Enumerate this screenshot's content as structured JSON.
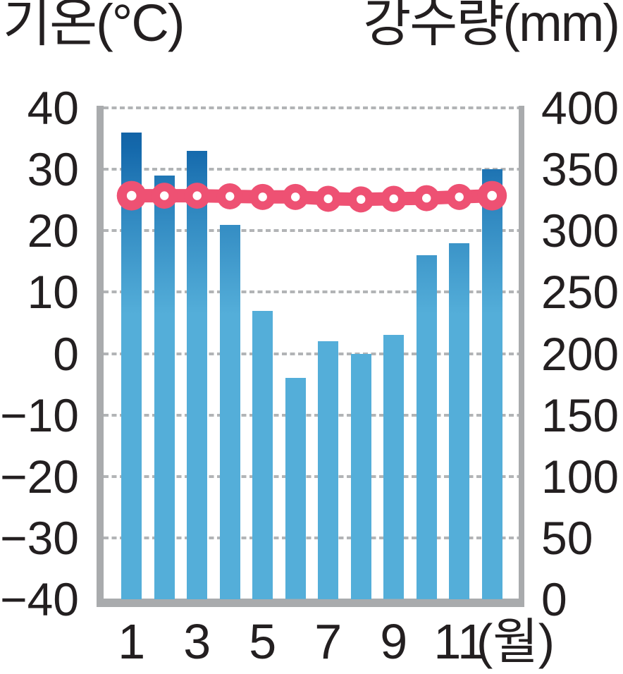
{
  "titles": {
    "left": "기온(°C)",
    "right": "강수량(mm)"
  },
  "left_axis": {
    "name": "기온",
    "unit": "°C",
    "min": -40,
    "max": 40,
    "step": 10,
    "ticks": [
      "40",
      "30",
      "20",
      "10",
      "0",
      "−10",
      "−20",
      "−30",
      "−40"
    ]
  },
  "right_axis": {
    "name": "강수량",
    "unit": "mm",
    "min": 0,
    "max": 400,
    "step": 50,
    "ticks": [
      "400",
      "350",
      "300",
      "250",
      "200",
      "150",
      "100",
      "50",
      "0"
    ]
  },
  "x_axis": {
    "unit_label": "(월)",
    "tick_months": [
      1,
      3,
      5,
      7,
      9,
      11
    ]
  },
  "chart_data": {
    "type": "bar",
    "subtype": "climograph: precipitation bars + temperature line",
    "categories": [
      1,
      2,
      3,
      4,
      5,
      6,
      7,
      8,
      9,
      10,
      11,
      12
    ],
    "series": [
      {
        "name": "강수량",
        "type": "bar",
        "axis": "right",
        "unit": "mm",
        "values": [
          380,
          345,
          365,
          305,
          235,
          180,
          210,
          200,
          215,
          280,
          290,
          350
        ]
      },
      {
        "name": "기온",
        "type": "line",
        "axis": "left",
        "unit": "°C",
        "values": [
          25.7,
          25.7,
          25.7,
          25.6,
          25.5,
          25.5,
          25.2,
          25.1,
          25.2,
          25.3,
          25.5,
          25.7
        ]
      }
    ],
    "left_axis_label": "기온(°C)",
    "left_axis_range": [
      -40,
      40
    ],
    "right_axis_label": "강수량(mm)",
    "right_axis_range": [
      0,
      400
    ],
    "xlabel": "(월)",
    "grid": "dotted horizontal, every 10°C / 50mm",
    "legend": "none"
  },
  "colors": {
    "bar_top": "#115d9f",
    "bar_mid": "#2e86bf",
    "bar_bottom": "#54aed9",
    "line": "#ee5173",
    "marker_hole": "#ffffff",
    "axis_frame": "#a9abad",
    "gridline": "#b2b4b6",
    "text": "#231f20",
    "background": "#ffffff"
  }
}
